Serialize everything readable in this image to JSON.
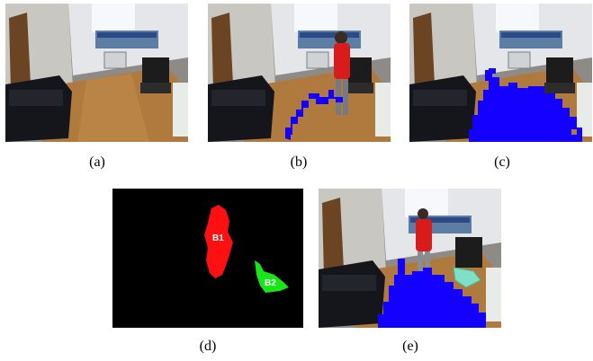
{
  "figure": {
    "panels": [
      {
        "id": "a",
        "caption": "(a)",
        "type": "camera-frame"
      },
      {
        "id": "b",
        "caption": "(b)",
        "type": "camera-frame-person-floor-detection"
      },
      {
        "id": "c",
        "caption": "(c)",
        "type": "camera-frame-floor-detection"
      },
      {
        "id": "d",
        "caption": "(d)",
        "type": "blob-mask",
        "blobs": [
          {
            "label": "B1",
            "color": "#ff1010"
          },
          {
            "label": "B2",
            "color": "#19e619"
          }
        ]
      },
      {
        "id": "e",
        "caption": "(e)",
        "type": "camera-frame-person-floor-detection"
      }
    ],
    "colors": {
      "floor_mask": "#1400ff",
      "blob_red": "#ff1010",
      "blob_green": "#19e619",
      "background_black": "#000000"
    }
  }
}
